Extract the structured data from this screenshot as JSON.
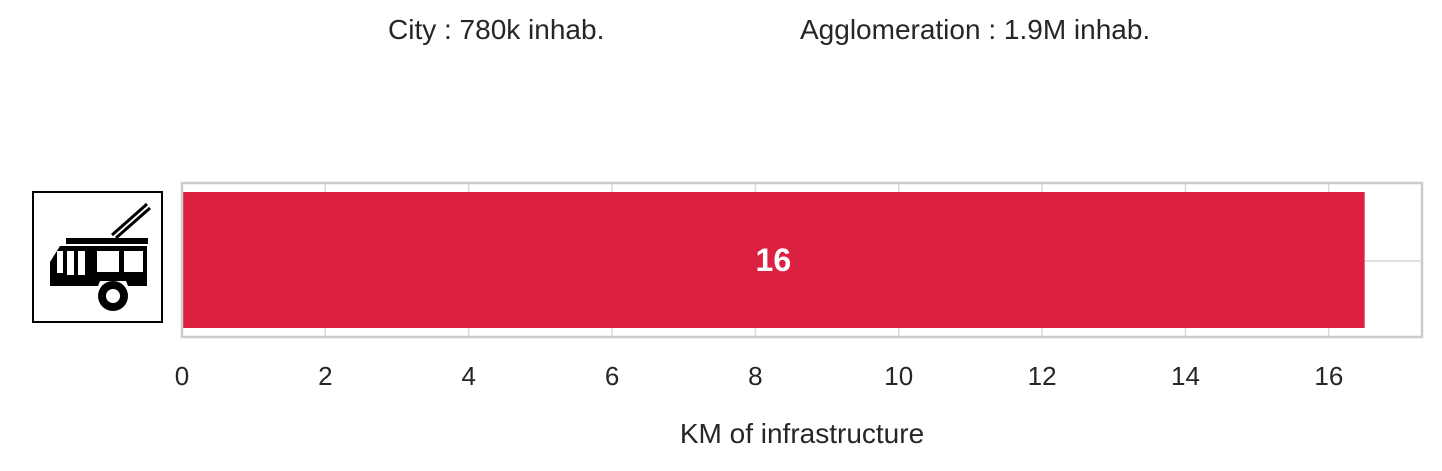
{
  "header": {
    "city": "City : 780k inhab.",
    "agglomeration": "Agglomeration : 1.9M inhab."
  },
  "colors": {
    "bar": "#DC2140",
    "frame": "#CCCCCC",
    "grid": "#D9D9D9",
    "text": "#262626",
    "bar_label": "#FFFFFF"
  },
  "icon": "trolleybus-icon",
  "chart_data": {
    "type": "bar",
    "orientation": "horizontal",
    "categories": [
      "trolleybus"
    ],
    "values": [
      16.5
    ],
    "data_labels": [
      "16"
    ],
    "xlabel": "KM of infrastructure",
    "ylabel": "",
    "xlim": [
      0,
      17.3
    ],
    "xticks": [
      0,
      2,
      4,
      6,
      8,
      10,
      12,
      14,
      16
    ],
    "grid": true
  }
}
